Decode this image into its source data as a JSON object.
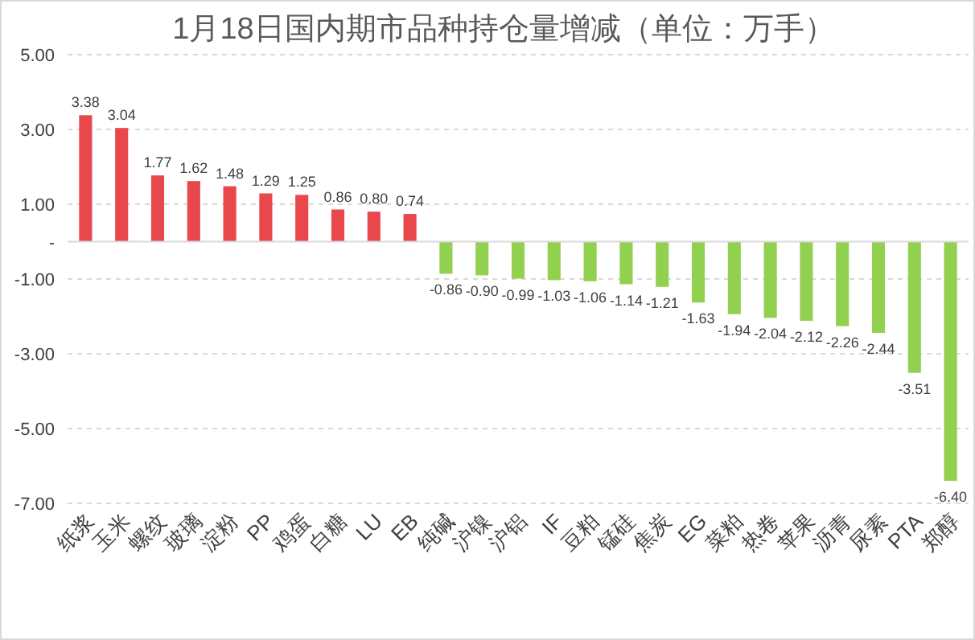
{
  "chart_data": {
    "type": "bar",
    "title": "1月18日国内期市品种持仓量增减（单位：万手）",
    "categories": [
      "纸浆",
      "玉米",
      "螺纹",
      "玻璃",
      "淀粉",
      "PP",
      "鸡蛋",
      "白糖",
      "LU",
      "EB",
      "纯碱",
      "沪镍",
      "沪铝",
      "IF",
      "豆粕",
      "锰硅",
      "焦炭",
      "EG",
      "菜粕",
      "热卷",
      "苹果",
      "沥青",
      "尿素",
      "PTA",
      "郑醇"
    ],
    "values": [
      3.38,
      3.04,
      1.77,
      1.62,
      1.48,
      1.29,
      1.25,
      0.86,
      0.8,
      0.74,
      -0.86,
      -0.9,
      -0.99,
      -1.03,
      -1.06,
      -1.14,
      -1.21,
      -1.63,
      -1.94,
      -2.04,
      -2.12,
      -2.26,
      -2.44,
      -3.51,
      -6.4
    ],
    "colors": [
      "#e8474c",
      "#e8474c",
      "#e8474c",
      "#e8474c",
      "#e8474c",
      "#e8474c",
      "#e8474c",
      "#e8474c",
      "#e8474c",
      "#e8474c",
      "#92d050",
      "#92d050",
      "#92d050",
      "#92d050",
      "#92d050",
      "#92d050",
      "#92d050",
      "#92d050",
      "#92d050",
      "#92d050",
      "#92d050",
      "#92d050",
      "#92d050",
      "#92d050",
      "#92d050"
    ],
    "ylim": [
      -7,
      5
    ],
    "yticks": [
      {
        "value": -7,
        "label": "-7.00"
      },
      {
        "value": -5,
        "label": "-5.00"
      },
      {
        "value": -3,
        "label": "-3.00"
      },
      {
        "value": -1,
        "label": "-1.00"
      },
      {
        "value": 0,
        "label": "-"
      },
      {
        "value": 1,
        "label": "1.00"
      },
      {
        "value": 3,
        "label": "3.00"
      },
      {
        "value": 5,
        "label": "5.00"
      }
    ],
    "value_labels": [
      "3.38",
      "3.04",
      "1.77",
      "1.62",
      "1.48",
      "1.29",
      "1.25",
      "0.86",
      "0.80",
      "0.74",
      "-0.86",
      "-0.90",
      "-0.99",
      "-1.03",
      "-1.06",
      "-1.14",
      "-1.21",
      "-1.63",
      "-1.94",
      "-2.04",
      "-2.12",
      "-2.26",
      "-2.44",
      "-3.51",
      "-6.40"
    ],
    "grid": "y"
  }
}
